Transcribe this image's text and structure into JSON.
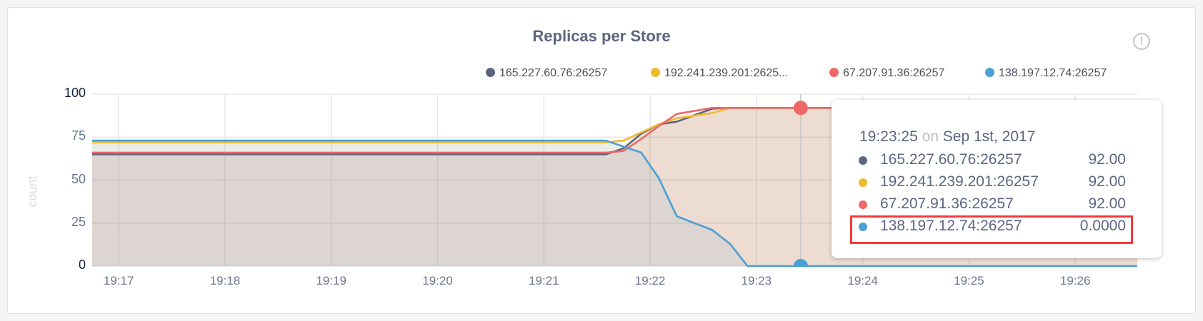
{
  "chart_data": {
    "type": "area",
    "title": "Replicas per Store",
    "ylabel": "count",
    "xlabel": "",
    "ylim": [
      0,
      100
    ],
    "yticks": [
      "100",
      "75",
      "50",
      "25",
      "0"
    ],
    "xticks": [
      "19:17",
      "19:18",
      "19:19",
      "19:20",
      "19:21",
      "19:22",
      "19:23",
      "19:24",
      "19:25",
      "19:26"
    ],
    "xrange": [
      "19:16:45",
      "19:26:35"
    ],
    "grid": true,
    "legend_position": "top-right",
    "series": [
      {
        "name": "165.227.60.76:26257",
        "legend_label": "165.227.60.76:26257",
        "color": "#5b6682",
        "points": [
          [
            "19:16:45",
            65
          ],
          [
            "19:21:35",
            65
          ],
          [
            "19:21:45",
            68.5
          ],
          [
            "19:21:55",
            77
          ],
          [
            "19:22:05",
            82.5
          ],
          [
            "19:22:15",
            84
          ],
          [
            "19:22:35",
            91.5
          ],
          [
            "19:22:45",
            92
          ],
          [
            "19:26:35",
            92
          ]
        ]
      },
      {
        "name": "192.241.239.201:26257",
        "legend_label": "192.241.239.201:2625...",
        "color": "#f0b92c",
        "points": [
          [
            "19:16:45",
            72
          ],
          [
            "19:21:35",
            72
          ],
          [
            "19:21:45",
            73
          ],
          [
            "19:22:05",
            82.5
          ],
          [
            "19:22:15",
            86
          ],
          [
            "19:22:35",
            89
          ],
          [
            "19:22:45",
            92
          ],
          [
            "19:26:35",
            92
          ]
        ]
      },
      {
        "name": "67.207.91.36:26257",
        "legend_label": "67.207.91.36:26257",
        "color": "#ef6767",
        "points": [
          [
            "19:16:45",
            66
          ],
          [
            "19:21:35",
            66
          ],
          [
            "19:21:45",
            67
          ],
          [
            "19:21:55",
            74
          ],
          [
            "19:22:05",
            81.5
          ],
          [
            "19:22:15",
            88.5
          ],
          [
            "19:22:35",
            92
          ],
          [
            "19:26:35",
            92
          ]
        ]
      },
      {
        "name": "138.197.12.74:26257",
        "legend_label": "138.197.12.74:26257",
        "color": "#4a9fd3",
        "points": [
          [
            "19:16:45",
            73
          ],
          [
            "19:21:35",
            73
          ],
          [
            "19:21:55",
            66
          ],
          [
            "19:22:05",
            51
          ],
          [
            "19:22:15",
            29
          ],
          [
            "19:22:25",
            25
          ],
          [
            "19:22:35",
            21
          ],
          [
            "19:22:45",
            13
          ],
          [
            "19:22:55",
            0
          ],
          [
            "19:26:35",
            0
          ]
        ]
      }
    ],
    "hover": {
      "time": "19:23:25",
      "on": "on",
      "date": "Sep 1st, 2017",
      "values": [
        "92.00",
        "92.00",
        "92.00",
        "0.0000"
      ],
      "highlighted_series": "138.197.12.74:26257"
    }
  },
  "info_icon": "info-circle-icon"
}
